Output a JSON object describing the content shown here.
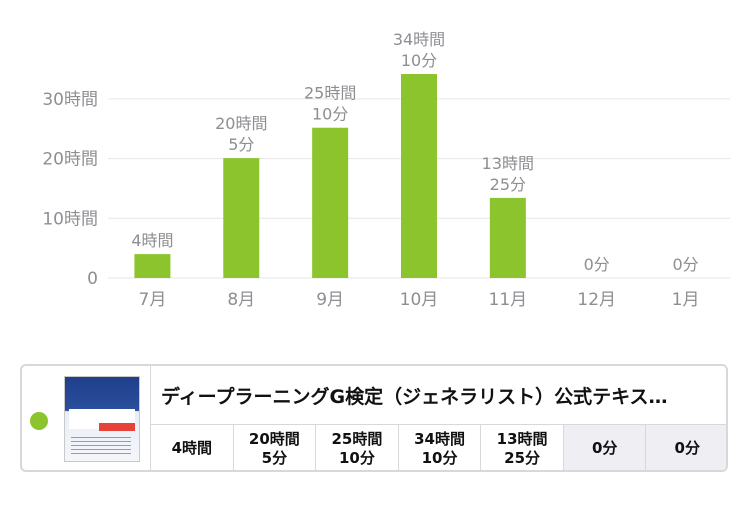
{
  "chart_data": {
    "type": "bar",
    "categories": [
      "7月",
      "8月",
      "9月",
      "10月",
      "11月",
      "12月",
      "1月"
    ],
    "values_minutes": [
      240,
      1205,
      1510,
      2050,
      805,
      0,
      0
    ],
    "values_hours": [
      4.0,
      20.08,
      25.17,
      34.17,
      13.42,
      0,
      0
    ],
    "data_labels": [
      [
        "4時間"
      ],
      [
        "20時間",
        "5分"
      ],
      [
        "25時間",
        "10分"
      ],
      [
        "34時間",
        "10分"
      ],
      [
        "13時間",
        "25分"
      ],
      [
        "0分"
      ],
      [
        "0分"
      ]
    ],
    "y_ticks": [
      {
        "value": 0,
        "label": "0"
      },
      {
        "value": 10,
        "label": "10時間"
      },
      {
        "value": 20,
        "label": "20時間"
      },
      {
        "value": 30,
        "label": "30時間"
      }
    ],
    "ylim": [
      0,
      34.17
    ],
    "grid": true,
    "bar_color": "#8bc42c"
  },
  "legend_card": {
    "dot_color": "#8bc42c",
    "cover_icon": "book-cover-icon",
    "title": "ディープラーニングG検定（ジェネラリスト）公式テキス…",
    "cells": [
      {
        "lines": [
          "4時間"
        ],
        "empty": false
      },
      {
        "lines": [
          "20時間",
          "5分"
        ],
        "empty": false
      },
      {
        "lines": [
          "25時間",
          "10分"
        ],
        "empty": false
      },
      {
        "lines": [
          "34時間",
          "10分"
        ],
        "empty": false
      },
      {
        "lines": [
          "13時間",
          "25分"
        ],
        "empty": false
      },
      {
        "lines": [
          "0分"
        ],
        "empty": true
      },
      {
        "lines": [
          "0分"
        ],
        "empty": true
      }
    ]
  }
}
